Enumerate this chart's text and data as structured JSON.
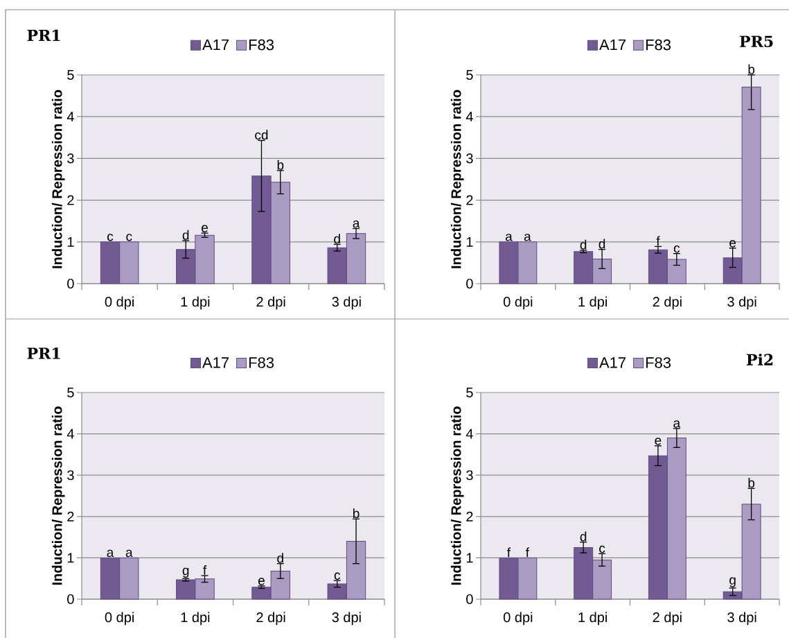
{
  "chart_data": [
    {
      "type": "bar",
      "title": "PR1",
      "ylabel": "Induction/ Repression ratio",
      "categories": [
        "0 dpi",
        "1 dpi",
        "2 dpi",
        "3 dpi"
      ],
      "ylim": [
        0,
        5
      ],
      "yticks": [
        0,
        1,
        2,
        3,
        4,
        5
      ],
      "grid": "y",
      "legend": "top",
      "series": [
        {
          "name": "A17",
          "color": "#725a92",
          "values": [
            1,
            0.82,
            2.58,
            0.86
          ],
          "errors": [
            null,
            0.21,
            0.85,
            0.08
          ],
          "value_labels": [
            "c",
            "d",
            "cd",
            "d"
          ]
        },
        {
          "name": "F83",
          "color": "#a99bc2",
          "values": [
            1,
            1.16,
            2.43,
            1.2
          ],
          "errors": [
            null,
            0.05,
            0.28,
            0.12
          ],
          "value_labels": [
            "c",
            "e",
            "b",
            "a"
          ]
        }
      ]
    },
    {
      "type": "bar",
      "title": "PR5",
      "ylabel": "Induction/ Repression ratio",
      "categories": [
        "0 dpi",
        "1 dpi",
        "2 dpi",
        "3 dpi"
      ],
      "ylim": [
        0,
        5
      ],
      "yticks": [
        0,
        1,
        2,
        3,
        4,
        5
      ],
      "grid": "y",
      "legend": "top",
      "series": [
        {
          "name": "A17",
          "color": "#725a92",
          "values": [
            1,
            0.77,
            0.81,
            0.62
          ],
          "errors": [
            null,
            0.03,
            0.08,
            0.23
          ],
          "value_labels": [
            "a",
            "d",
            "f",
            "e"
          ]
        },
        {
          "name": "F83",
          "color": "#a99bc2",
          "values": [
            1,
            0.59,
            0.58,
            4.71
          ],
          "errors": [
            null,
            0.23,
            0.14,
            [
              4.17,
              5
            ]
          ],
          "value_labels": [
            "a",
            "d",
            "c",
            "b"
          ]
        }
      ]
    },
    {
      "type": "bar",
      "title": "PR1",
      "ylabel": "Induction/ Repression ratio",
      "categories": [
        "0 dpi",
        "1 dpi",
        "2 dpi",
        "3 dpi"
      ],
      "ylim": [
        0,
        5
      ],
      "yticks": [
        0,
        1,
        2,
        3,
        4,
        5
      ],
      "grid": "y",
      "legend": "top",
      "series": [
        {
          "name": "A17",
          "color": "#725a92",
          "values": [
            1,
            0.47,
            0.29,
            0.37
          ],
          "errors": [
            null,
            0.03,
            0.03,
            0.08
          ],
          "value_labels": [
            "a",
            "g",
            "e",
            "c"
          ]
        },
        {
          "name": "F83",
          "color": "#a99bc2",
          "values": [
            1,
            0.49,
            0.68,
            1.4
          ],
          "errors": [
            null,
            0.08,
            0.18,
            0.54
          ],
          "value_labels": [
            "a",
            "f",
            "d",
            "b"
          ]
        }
      ]
    },
    {
      "type": "bar",
      "title": "Pi2",
      "ylabel": "Induction/ Repression ratio",
      "categories": [
        "0 dpi",
        "1 dpi",
        "2 dpi",
        "3 dpi"
      ],
      "ylim": [
        0,
        5
      ],
      "yticks": [
        0,
        1,
        2,
        3,
        4,
        5
      ],
      "grid": "y",
      "legend": "top",
      "series": [
        {
          "name": "A17",
          "color": "#725a92",
          "values": [
            1,
            1.25,
            3.47,
            0.18
          ],
          "errors": [
            null,
            0.13,
            0.24,
            0.09
          ],
          "value_labels": [
            "f",
            "d",
            "e",
            "g"
          ]
        },
        {
          "name": "F83",
          "color": "#a99bc2",
          "values": [
            1,
            0.95,
            3.9,
            2.3
          ],
          "errors": [
            null,
            0.15,
            0.23,
            0.38
          ],
          "value_labels": [
            "f",
            "c",
            "a",
            "b"
          ]
        }
      ]
    }
  ]
}
